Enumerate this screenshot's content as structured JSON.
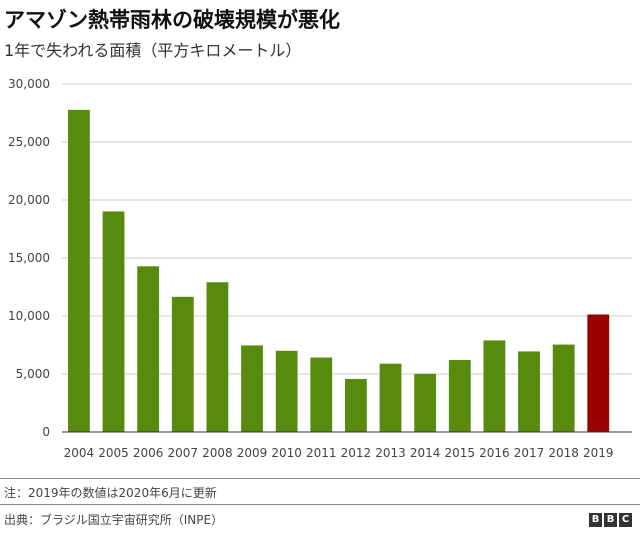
{
  "title": "アマゾン熱帯雨林の破壊規模が悪化",
  "subtitle": "1年で失われる面積（平方キロメートル）",
  "note": "注：2019年の数値は2020年6月に更新",
  "source": "出典：ブラジル国立宇宙研究所（INPE）",
  "logo": [
    "B",
    "B",
    "C"
  ],
  "colors": {
    "bar": "#588a0d",
    "highlight": "#990000",
    "grid": "#cccccc",
    "axis": "#333333"
  },
  "chart_data": {
    "type": "bar",
    "categories": [
      "2004",
      "2005",
      "2006",
      "2007",
      "2008",
      "2009",
      "2010",
      "2011",
      "2012",
      "2013",
      "2014",
      "2015",
      "2016",
      "2017",
      "2018",
      "2019"
    ],
    "values": [
      27772,
      19014,
      14286,
      11651,
      12911,
      7464,
      7000,
      6418,
      4571,
      5891,
      5012,
      6207,
      7893,
      6947,
      7536,
      10129
    ],
    "highlight_category": "2019",
    "ylim": [
      0,
      30000
    ],
    "yticks": [
      0,
      5000,
      10000,
      15000,
      20000,
      25000,
      30000
    ],
    "ytick_labels": [
      "0",
      "5,000",
      "10,000",
      "15,000",
      "20,000",
      "25,000",
      "30,000"
    ],
    "grid": true
  }
}
